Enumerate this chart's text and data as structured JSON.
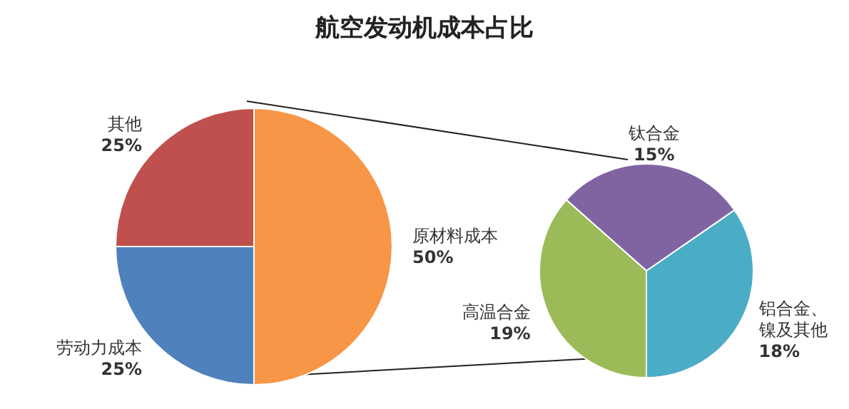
{
  "chart_data": [
    {
      "type": "pie",
      "title": "航空发动机成本占比",
      "categories": [
        "原材料成本",
        "劳动力成本",
        "其他"
      ],
      "values": [
        50,
        25,
        25
      ],
      "colors": [
        "#f79646",
        "#4f81bd",
        "#c0504d"
      ],
      "value_labels": [
        "50%",
        "25%",
        "25%"
      ],
      "legend": false
    },
    {
      "type": "pie",
      "categories": [
        "铝合金、镍及其他",
        "钛合金",
        "高温合金"
      ],
      "values": [
        18,
        15,
        19
      ],
      "colors": [
        "#4bacc6",
        "#8064a2",
        "#9bbb59"
      ],
      "value_labels": [
        "18%",
        "15%",
        "19%"
      ],
      "legend": false
    }
  ]
}
